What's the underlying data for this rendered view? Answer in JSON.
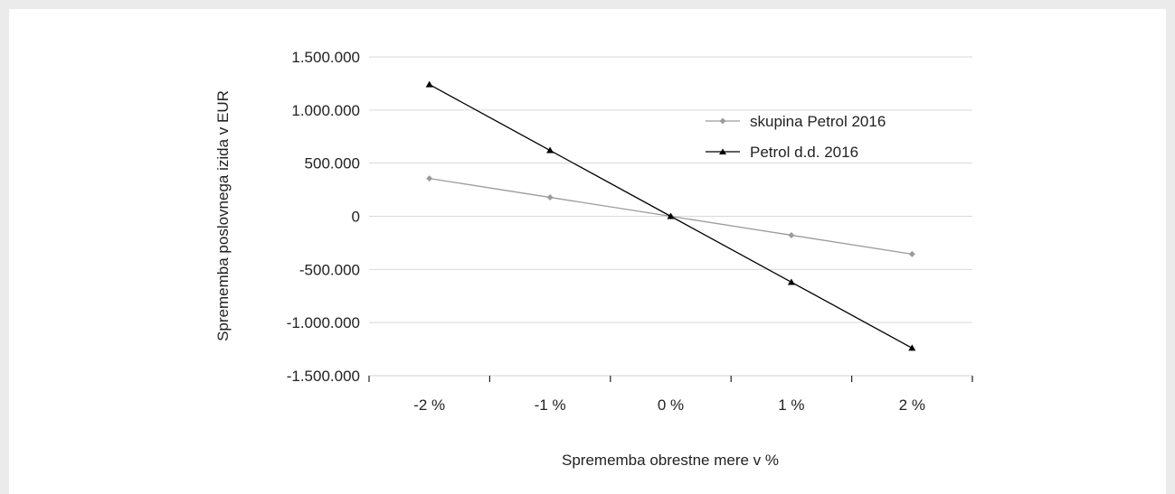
{
  "chart_data": {
    "type": "line",
    "categories": [
      "-2 %",
      "-1 %",
      "0 %",
      "1 %",
      "2 %"
    ],
    "series": [
      {
        "name": "skupina Petrol 2016",
        "values": [
          356000,
          178000,
          0,
          -178000,
          -356000
        ],
        "color": "#9b9b9b",
        "marker": "diamond"
      },
      {
        "name": "Petrol d.d. 2016",
        "values": [
          1240000,
          620000,
          0,
          -620000,
          -1240000
        ],
        "color": "#000000",
        "marker": "triangle"
      }
    ],
    "yticks": [
      1500000,
      1000000,
      500000,
      0,
      -500000,
      -1000000,
      -1500000
    ],
    "ytick_labels": [
      "1.500.000",
      "1.000.000",
      "500.000",
      "0",
      "-500.000",
      "-1.000.000",
      "-1.500.000"
    ],
    "ylim": [
      -1500000,
      1500000
    ],
    "xlabel": "Sprememba obrestne mere v %",
    "ylabel": "Sprememba poslovnega izida v EUR",
    "grid": true,
    "legend_position": "top-right"
  }
}
